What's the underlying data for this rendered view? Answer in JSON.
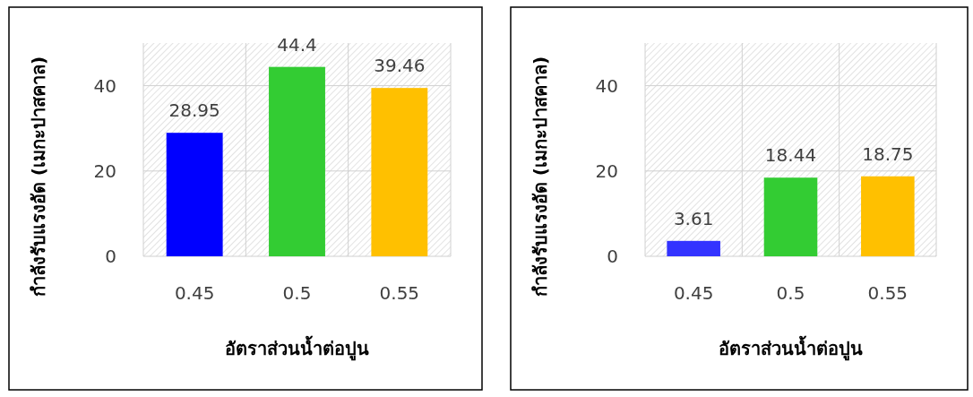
{
  "chart_data": [
    {
      "type": "bar",
      "categories": [
        "0.45",
        "0.5",
        "0.55"
      ],
      "values": [
        28.95,
        44.4,
        39.46
      ],
      "colors": [
        "#0000ff",
        "#33cc33",
        "#ffc000"
      ],
      "xlabel": "อัตราส่วนน้ำต่อปูน",
      "ylabel": "กำลังรับแรงอัด (เมกะปาสคาล)",
      "ylim": [
        0,
        50
      ],
      "yticks": [
        0,
        20,
        40
      ],
      "grid": true,
      "data_labels": true
    },
    {
      "type": "bar",
      "categories": [
        "0.45",
        "0.5",
        "0.55"
      ],
      "values": [
        3.61,
        18.44,
        18.75
      ],
      "colors": [
        "#3333ff",
        "#33cc33",
        "#ffc000"
      ],
      "xlabel": "อัตราส่วนน้ำต่อปูน",
      "ylabel": "กำลังรับแรงอัด (เมกะปาสคาล)",
      "ylim": [
        0,
        50
      ],
      "yticks": [
        0,
        20,
        40
      ],
      "grid": true,
      "data_labels": true
    }
  ]
}
